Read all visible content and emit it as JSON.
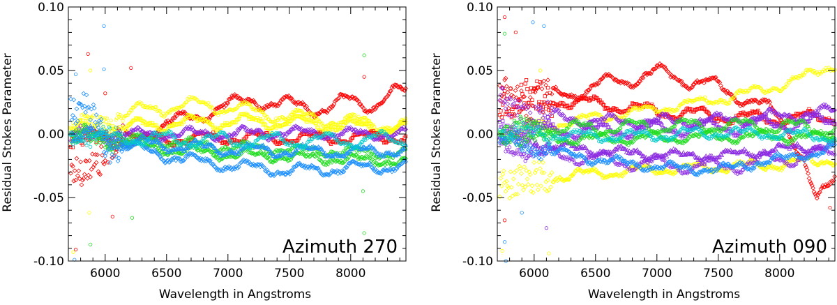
{
  "chart_data": [
    {
      "type": "scatter",
      "title": "",
      "xlabel": "Wavelength in Angstroms",
      "ylabel": "Residual Stokes Parameter",
      "annotation": "Azimuth 270",
      "xlim": [
        5700,
        8450
      ],
      "ylim": [
        -0.1,
        0.1
      ],
      "xticks": [
        "6000",
        "6500",
        "7000",
        "7500",
        "8000"
      ],
      "yticks": [
        "0.10",
        "0.05",
        "0.00",
        "-0.05",
        "-0.10"
      ],
      "grid": false,
      "series": [
        {
          "color": "#ff0000",
          "marker": "diamond",
          "x": [
            5750,
            5900,
            6050,
            6250,
            6500,
            6800,
            7000,
            7200,
            7400,
            7600,
            7800,
            8000,
            8200,
            8400
          ],
          "y": [
            -0.035,
            -0.02,
            -0.01,
            -0.003,
            0.008,
            0.016,
            0.022,
            0.028,
            0.022,
            0.024,
            0.018,
            0.028,
            0.022,
            0.034
          ]
        },
        {
          "color": "#ffff00",
          "marker": "circle",
          "x": [
            5750,
            6000,
            6250,
            6500,
            6750,
            7000,
            7250,
            7500,
            7750,
            8000,
            8250,
            8450
          ],
          "y": [
            0.005,
            0.012,
            0.018,
            0.021,
            0.023,
            0.021,
            0.017,
            0.014,
            0.012,
            0.01,
            0.008,
            0.006
          ]
        },
        {
          "color": "#ffff00",
          "marker": "square",
          "x": [
            5750,
            6000,
            6500,
            7000,
            7500,
            8000,
            8450
          ],
          "y": [
            0.002,
            0.004,
            0.008,
            0.01,
            0.009,
            0.006,
            0.004
          ]
        },
        {
          "color": "#ff0000",
          "marker": "square",
          "x": [
            5750,
            6000,
            6500,
            7000,
            7500,
            8000,
            8450
          ],
          "y": [
            -0.004,
            -0.005,
            -0.004,
            -0.003,
            -0.003,
            -0.003,
            -0.002
          ]
        },
        {
          "color": "#8b2be2",
          "marker": "diamond",
          "x": [
            5750,
            6000,
            6500,
            7000,
            7500,
            8000,
            8450
          ],
          "y": [
            -0.001,
            -0.001,
            0.0,
            0.0,
            0.001,
            0.0,
            0.0
          ]
        },
        {
          "color": "#22dd22",
          "marker": "circle",
          "x": [
            5750,
            6000,
            6500,
            7000,
            7500,
            8000,
            8450
          ],
          "y": [
            0.001,
            -0.002,
            -0.006,
            -0.01,
            -0.012,
            -0.014,
            -0.016
          ]
        },
        {
          "color": "#22dd22",
          "marker": "diamond",
          "x": [
            5750,
            6000,
            6500,
            7000,
            7500,
            8000,
            8450
          ],
          "y": [
            -0.002,
            -0.005,
            -0.012,
            -0.016,
            -0.018,
            -0.02,
            -0.022
          ]
        },
        {
          "color": "#1e90ff",
          "marker": "triangle",
          "x": [
            5750,
            6000,
            6500,
            7000,
            7500,
            8000,
            8450
          ],
          "y": [
            0.0,
            -0.004,
            -0.009,
            -0.012,
            -0.013,
            -0.014,
            -0.012
          ]
        },
        {
          "color": "#1e90ff",
          "marker": "diamond",
          "x": [
            5750,
            5900,
            6000,
            6500,
            7000,
            7500,
            8000,
            8450
          ],
          "y": [
            0.02,
            0.012,
            -0.006,
            -0.017,
            -0.025,
            -0.029,
            -0.027,
            -0.025
          ]
        },
        {
          "color": "#00cccc",
          "marker": "circle",
          "x": [
            5750,
            6000,
            6500,
            7000,
            7500,
            8000,
            8450
          ],
          "y": [
            0.0,
            -0.002,
            -0.004,
            -0.005,
            -0.005,
            -0.005,
            -0.004
          ]
        }
      ],
      "outliers": [
        {
          "color": "#1e90ff",
          "x": 5990,
          "y": 0.085
        },
        {
          "color": "#ff0000",
          "x": 5860,
          "y": 0.063
        },
        {
          "color": "#1e90ff",
          "x": 5990,
          "y": 0.051
        },
        {
          "color": "#1e90ff",
          "x": 5760,
          "y": 0.047
        },
        {
          "color": "#ff0000",
          "x": 6210,
          "y": 0.052
        },
        {
          "color": "#ffff00",
          "x": 5880,
          "y": 0.05
        },
        {
          "color": "#ff0000",
          "x": 6000,
          "y": 0.032
        },
        {
          "color": "#ff0000",
          "x": 8110,
          "y": 0.045
        },
        {
          "color": "#22dd22",
          "x": 8110,
          "y": 0.062
        },
        {
          "color": "#ffff00",
          "x": 5870,
          "y": -0.062
        },
        {
          "color": "#22dd22",
          "x": 5880,
          "y": -0.087
        },
        {
          "color": "#ff0000",
          "x": 6060,
          "y": -0.065
        },
        {
          "color": "#22dd22",
          "x": 6220,
          "y": -0.066
        },
        {
          "color": "#ff0000",
          "x": 5760,
          "y": -0.091
        },
        {
          "color": "#ffff00",
          "x": 5740,
          "y": -0.093
        },
        {
          "color": "#1e90ff",
          "x": 5750,
          "y": -0.099
        },
        {
          "color": "#22dd22",
          "x": 8110,
          "y": -0.078
        },
        {
          "color": "#22dd22",
          "x": 8100,
          "y": -0.045
        }
      ]
    },
    {
      "type": "scatter",
      "title": "",
      "xlabel": "Wavelength in Angstroms",
      "ylabel": "Residual Stokes Parameter",
      "annotation": "Azimuth 090",
      "xlim": [
        5700,
        8450
      ],
      "ylim": [
        -0.1,
        0.1
      ],
      "xticks": [
        "6000",
        "6500",
        "7000",
        "7500",
        "8000"
      ],
      "yticks": [
        "0.10",
        "0.05",
        "0.00",
        "-0.05",
        "-0.10"
      ],
      "grid": false,
      "series": [
        {
          "color": "#ff0000",
          "marker": "diamond",
          "x": [
            5750,
            5900,
            6100,
            6300,
            6500,
            6800,
            7000,
            7200,
            7400,
            7600,
            7800,
            8000,
            8100,
            8200,
            8300,
            8450
          ],
          "y": [
            0.03,
            0.026,
            0.028,
            0.032,
            0.038,
            0.044,
            0.048,
            0.044,
            0.04,
            0.032,
            0.026,
            0.012,
            0.0,
            -0.02,
            -0.055,
            -0.035
          ]
        },
        {
          "color": "#ff0000",
          "marker": "square",
          "x": [
            5750,
            6000,
            6500,
            7000,
            7500,
            8000,
            8450
          ],
          "y": [
            0.03,
            0.028,
            0.024,
            0.018,
            0.014,
            0.012,
            0.014
          ]
        },
        {
          "color": "#ffff00",
          "marker": "circle",
          "x": [
            5750,
            6000,
            6500,
            7000,
            7500,
            8000,
            8200,
            8450
          ],
          "y": [
            0.0,
            0.005,
            0.013,
            0.02,
            0.027,
            0.038,
            0.045,
            0.055
          ]
        },
        {
          "color": "#ffff00",
          "marker": "diamond",
          "x": [
            5750,
            6000,
            6500,
            7000,
            7500,
            8000,
            8450
          ],
          "y": [
            -0.038,
            -0.035,
            -0.031,
            -0.028,
            -0.026,
            -0.024,
            -0.02
          ]
        },
        {
          "color": "#8b2be2",
          "marker": "diamond",
          "x": [
            5750,
            6000,
            6500,
            7000,
            7500,
            8000,
            8450
          ],
          "y": [
            0.022,
            0.015,
            0.01,
            0.01,
            0.011,
            0.014,
            0.018
          ]
        },
        {
          "color": "#8b2be2",
          "marker": "square",
          "x": [
            5750,
            6000,
            6500,
            7000,
            7500,
            8000,
            8450
          ],
          "y": [
            0.006,
            0.003,
            0.002,
            0.004,
            0.005,
            0.008,
            0.01
          ]
        },
        {
          "color": "#8b2be2",
          "marker": "circle",
          "x": [
            5750,
            6000,
            6500,
            7000,
            7500,
            8000,
            8450
          ],
          "y": [
            -0.01,
            -0.014,
            -0.02,
            -0.024,
            -0.026,
            -0.02,
            -0.015
          ]
        },
        {
          "color": "#8b2be2",
          "marker": "triangle",
          "x": [
            5750,
            6000,
            6500,
            7000,
            7500,
            8000,
            8450
          ],
          "y": [
            -0.004,
            -0.008,
            -0.013,
            -0.016,
            -0.017,
            -0.012,
            -0.008
          ]
        },
        {
          "color": "#22dd22",
          "marker": "circle",
          "x": [
            5750,
            6000,
            6500,
            7000,
            7500,
            8000,
            8450
          ],
          "y": [
            0.005,
            0.004,
            0.005,
            0.006,
            0.007,
            0.006,
            0.004
          ]
        },
        {
          "color": "#22dd22",
          "marker": "diamond",
          "x": [
            5750,
            6000,
            6500,
            7000,
            7500,
            8000,
            8450
          ],
          "y": [
            -0.002,
            -0.003,
            -0.004,
            -0.003,
            -0.002,
            -0.002,
            -0.003
          ]
        },
        {
          "color": "#1e90ff",
          "marker": "diamond",
          "x": [
            5750,
            6000,
            6500,
            7000,
            7500,
            8000,
            8450
          ],
          "y": [
            -0.005,
            -0.012,
            -0.02,
            -0.026,
            -0.028,
            -0.02,
            -0.012
          ]
        },
        {
          "color": "#00cccc",
          "marker": "circle",
          "x": [
            5750,
            6000,
            6500,
            7000,
            7500,
            8000,
            8450
          ],
          "y": [
            0.002,
            0.0,
            -0.002,
            -0.001,
            0.001,
            0.0,
            -0.002
          ]
        }
      ],
      "outliers": [
        {
          "color": "#1e90ff",
          "x": 5990,
          "y": 0.088
        },
        {
          "color": "#ff0000",
          "x": 5850,
          "y": 0.08
        },
        {
          "color": "#22dd22",
          "x": 5760,
          "y": 0.079
        },
        {
          "color": "#ff0000",
          "x": 5760,
          "y": 0.092
        },
        {
          "color": "#1e90ff",
          "x": 6080,
          "y": 0.085
        },
        {
          "color": "#ffff00",
          "x": 6050,
          "y": 0.05
        },
        {
          "color": "#1e90ff",
          "x": 5760,
          "y": -0.085
        },
        {
          "color": "#ff0000",
          "x": 5760,
          "y": -0.068
        },
        {
          "color": "#ffff00",
          "x": 5740,
          "y": -0.092
        },
        {
          "color": "#1e90ff",
          "x": 5900,
          "y": -0.062
        },
        {
          "color": "#8b2be2",
          "x": 6100,
          "y": -0.074
        },
        {
          "color": "#ffff00",
          "x": 6120,
          "y": -0.094
        },
        {
          "color": "#1e90ff",
          "x": 5770,
          "y": -0.1
        },
        {
          "color": "#ff0000",
          "x": 8410,
          "y": -0.058
        }
      ]
    }
  ]
}
